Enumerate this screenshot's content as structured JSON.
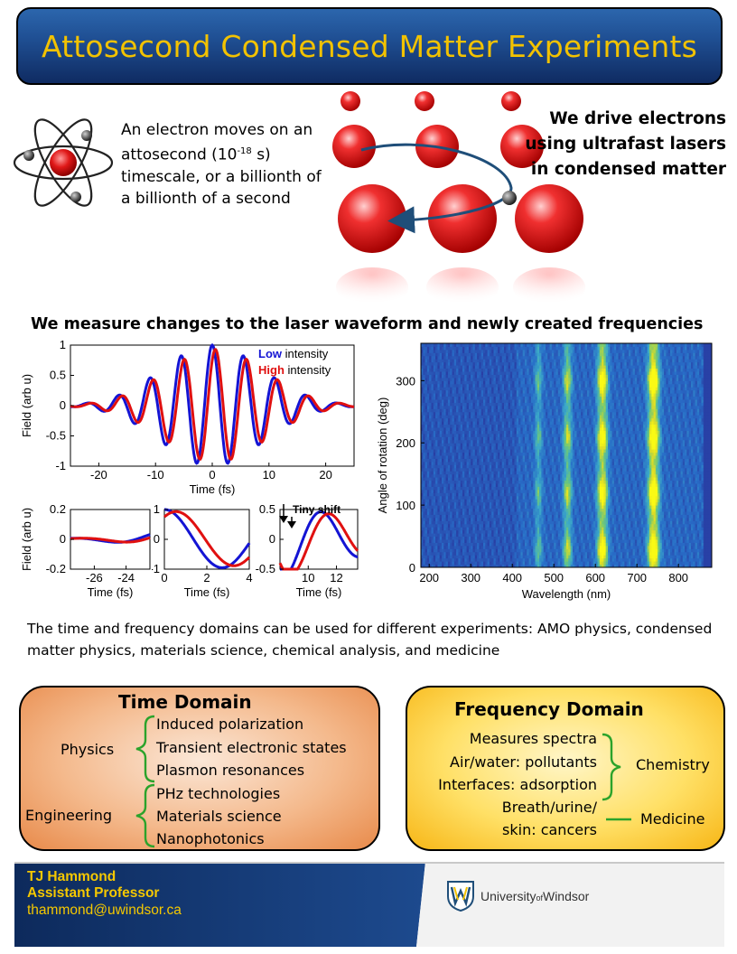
{
  "header": {
    "title": "Attosecond Condensed Matter Experiments"
  },
  "intro": {
    "line1": "An electron moves on an",
    "line2_pre": "attosecond (10",
    "line2_sup": "-18",
    "line2_post": " s)",
    "line3": "timescale, or a billionth of",
    "line4": "a billionth of a second"
  },
  "drive": {
    "line1": "We drive electrons",
    "line2": "using ultrafast lasers",
    "line3": "in condensed matter"
  },
  "measure_heading": "We measure changes to the laser waveform and newly created frequencies",
  "chart_data": [
    {
      "type": "line",
      "ylabel": "Field (arb u)",
      "xlabel": "Time (fs)",
      "xlim": [
        -25,
        25
      ],
      "ylim": [
        -1,
        1
      ],
      "xticks": [
        "-20",
        "-10",
        "0",
        "10",
        "20"
      ],
      "yticks": [
        "1",
        "0.5",
        "0",
        "-0.5",
        "-1"
      ],
      "series": [
        {
          "name": "Low",
          "label_suffix": " intensity",
          "color": "#1414d4",
          "amplitude": 1.0,
          "width_fs": 8.8,
          "period_fs": 5.5,
          "shift_fs": 0.0
        },
        {
          "name": "High",
          "label_suffix": " intensity",
          "color": "#e01010",
          "amplitude": 0.93,
          "width_fs": 8.8,
          "period_fs": 5.5,
          "shift_fs": 0.55
        }
      ]
    },
    {
      "type": "line",
      "ylabel": "Field (arb u)",
      "xlabel": "Time (fs)",
      "xlim": [
        -27.5,
        -22.5
      ],
      "ylim": [
        -0.2,
        0.2
      ],
      "xticks": [
        "-26",
        "-24"
      ],
      "yticks": [
        "0.2",
        "0",
        "-0.2"
      ]
    },
    {
      "type": "line",
      "xlabel": "Time (fs)",
      "xlim": [
        0,
        4
      ],
      "ylim": [
        -1,
        1
      ],
      "xticks": [
        "0",
        "2",
        "4"
      ],
      "yticks": [
        "1",
        "0",
        "-1"
      ]
    },
    {
      "type": "line",
      "xlabel": "Time (fs)",
      "xlim": [
        8,
        13.5
      ],
      "ylim": [
        -0.5,
        0.5
      ],
      "xticks": [
        "10",
        "12"
      ],
      "yticks": [
        "0.5",
        "0",
        "-0.5"
      ],
      "annotation": "Tiny shift"
    },
    {
      "type": "heatmap",
      "xlabel": "Wavelength (nm)",
      "ylabel": "Angle of rotation (deg)",
      "xlim": [
        180,
        880
      ],
      "ylim": [
        0,
        360
      ],
      "xticks": [
        "200",
        "300",
        "400",
        "500",
        "600",
        "700",
        "800"
      ],
      "yticks": [
        "300",
        "200",
        "100",
        "0"
      ],
      "peaks_nm": [
        {
          "center": 463,
          "strength": 0.35
        },
        {
          "center": 533,
          "strength": 0.55
        },
        {
          "center": 617,
          "strength": 0.85
        },
        {
          "center": 740,
          "strength": 1.0
        }
      ],
      "angle_maxima_deg": [
        30,
        120,
        210,
        300
      ]
    }
  ],
  "paragraph": "The time and frequency domains can be used for different experiments: AMO physics, condensed matter physics, materials science, chemical analysis, and medicine",
  "time_domain": {
    "title": "Time Domain",
    "physics_label": "Physics",
    "physics_items": [
      "Induced polarization",
      "Transient electronic states",
      "Plasmon resonances"
    ],
    "engineering_label": "Engineering",
    "engineering_items": [
      "PHz technologies",
      "Materials science",
      "Nanophotonics"
    ]
  },
  "frequency_domain": {
    "title": "Frequency Domain",
    "chemistry_items": [
      "Measures  spectra",
      "Air/water: pollutants",
      "Interfaces: adsorption"
    ],
    "chemistry_label": "Chemistry",
    "medicine_items": [
      "Breath/urine/",
      "skin: cancers"
    ],
    "medicine_label": "Medicine"
  },
  "footer": {
    "name": "TJ Hammond",
    "role": "Assistant  Professor",
    "email": "thammond@uwindsor.ca",
    "logo_text_a": "University",
    "logo_text_b": "of",
    "logo_text_c": "Windsor"
  },
  "colors": {
    "title_text": "#f2c200",
    "low": "#1414d4",
    "high": "#e01010",
    "bracket": "#2ba32b",
    "footer_text": "#f5c800"
  }
}
